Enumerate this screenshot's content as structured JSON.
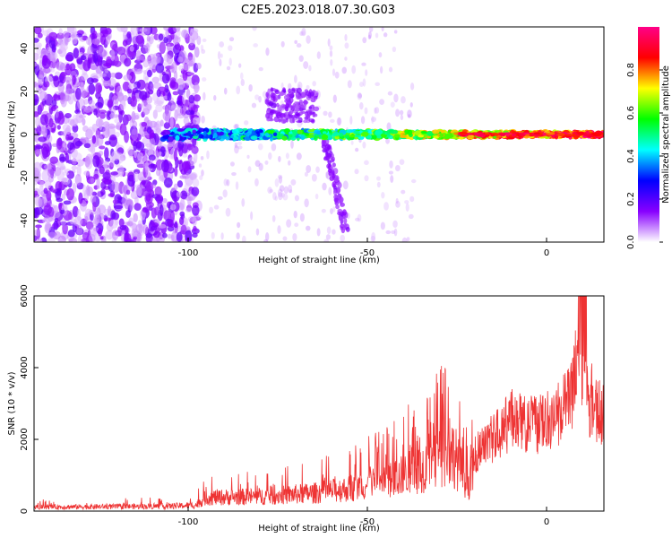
{
  "chart_data": [
    {
      "type": "heatmap",
      "title": "C2E5.2023.018.07.30.G03",
      "xlabel": "Height of straight line (km)",
      "ylabel": "Frequency (Hz)",
      "xlim": [
        -143,
        16
      ],
      "ylim": [
        -50,
        50
      ],
      "x_ticks": [
        -100,
        -50,
        0
      ],
      "y_ticks": [
        -40,
        -20,
        0,
        20,
        40
      ],
      "colorbar": {
        "label": "Normalized spectral amplitude",
        "range": [
          0,
          1
        ],
        "ticks": [
          0.0,
          0.2,
          0.4,
          0.6,
          0.8
        ],
        "colormap": [
          "#ffffff",
          "#8800ff",
          "#0000ff",
          "#00ffff",
          "#00ff00",
          "#ffff00",
          "#ff0000",
          "#ff0088"
        ]
      },
      "features": [
        {
          "name": "diffuse noise",
          "x_range": [
            -143,
            -97
          ],
          "y_range": [
            -50,
            50
          ]
        },
        {
          "name": "main band",
          "x_range": [
            -107,
            16
          ],
          "y_center": 0
        }
      ],
      "grid": false
    },
    {
      "type": "line",
      "xlabel": "Height of straight line (km)",
      "ylabel": "SNR (10 * v/v)",
      "xlim": [
        -143,
        16
      ],
      "ylim": [
        0,
        6000
      ],
      "x_ticks": [
        -100,
        -50,
        0
      ],
      "y_ticks": [
        0,
        2000,
        4000,
        6000
      ],
      "series_color": "#ee3333",
      "envelope": {
        "x": [
          -143,
          -120,
          -105,
          -98,
          -95,
          -80,
          -65,
          -55,
          -45,
          -38,
          -30,
          -26,
          -22,
          -20,
          -15,
          -10,
          -5,
          0,
          5,
          8,
          10,
          13,
          16
        ],
        "y": [
          180,
          200,
          220,
          260,
          600,
          650,
          800,
          1000,
          1300,
          1700,
          2300,
          2600,
          1200,
          1900,
          2400,
          3000,
          2800,
          2900,
          3400,
          4400,
          4000,
          3600,
          3200
        ]
      },
      "grid": false
    }
  ]
}
